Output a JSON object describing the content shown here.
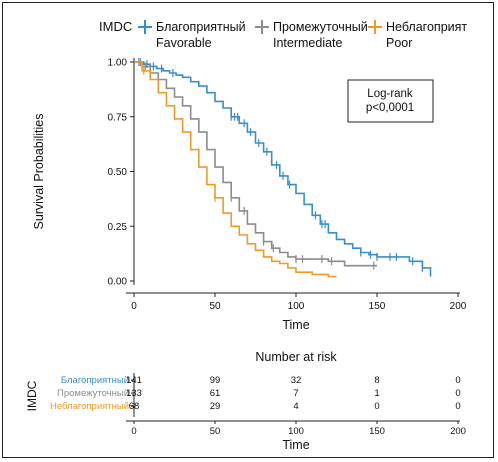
{
  "chart_data": [
    {
      "type": "line",
      "subtype": "kaplan-meier",
      "xlabel": "Time",
      "ylabel": "Survival Probabilities",
      "xlim": [
        0,
        200
      ],
      "ylim": [
        0,
        1
      ],
      "xticks": [
        0,
        50,
        100,
        150,
        200
      ],
      "yticks": [
        0.0,
        0.25,
        0.5,
        0.75,
        1.0
      ],
      "ytick_labels": [
        "0.00",
        "0.25",
        "0.50",
        "0.75",
        "1.00"
      ],
      "grid": false,
      "legend": {
        "title": "IMDC",
        "placement": "top",
        "entries": [
          {
            "line1": "Благоприятный",
            "line2": "Favorable"
          },
          {
            "line1": "Промежуточный",
            "line2": "Intermediate"
          },
          {
            "line1": "Неблагоприят",
            "line2": "Poor"
          }
        ]
      },
      "annotation": {
        "line1": "Log-rank",
        "line2": "p<0,0001"
      },
      "series": [
        {
          "color": "#3a8ec8",
          "points": [
            [
              0,
              1.0
            ],
            [
              6,
              0.99
            ],
            [
              10,
              0.98
            ],
            [
              14,
              0.97
            ],
            [
              18,
              0.96
            ],
            [
              22,
              0.95
            ],
            [
              26,
              0.94
            ],
            [
              30,
              0.93
            ],
            [
              35,
              0.91
            ],
            [
              40,
              0.89
            ],
            [
              45,
              0.86
            ],
            [
              50,
              0.82
            ],
            [
              55,
              0.79
            ],
            [
              60,
              0.75
            ],
            [
              65,
              0.72
            ],
            [
              70,
              0.68
            ],
            [
              75,
              0.63
            ],
            [
              80,
              0.59
            ],
            [
              85,
              0.53
            ],
            [
              90,
              0.48
            ],
            [
              95,
              0.44
            ],
            [
              100,
              0.4
            ],
            [
              105,
              0.35
            ],
            [
              110,
              0.3
            ],
            [
              115,
              0.26
            ],
            [
              120,
              0.22
            ],
            [
              125,
              0.19
            ],
            [
              130,
              0.17
            ],
            [
              135,
              0.15
            ],
            [
              140,
              0.13
            ],
            [
              145,
              0.12
            ],
            [
              150,
              0.11
            ],
            [
              160,
              0.11
            ],
            [
              170,
              0.09
            ],
            [
              178,
              0.06
            ],
            [
              183,
              0.02
            ]
          ],
          "censor_times": [
            3,
            8,
            12,
            17,
            24,
            60,
            62,
            64,
            68,
            72,
            77,
            82,
            88,
            92,
            96,
            112,
            116,
            118,
            140,
            146,
            150,
            158,
            162,
            172,
            178
          ]
        },
        {
          "color": "#8c8c8c",
          "points": [
            [
              0,
              1.0
            ],
            [
              5,
              0.98
            ],
            [
              10,
              0.95
            ],
            [
              15,
              0.92
            ],
            [
              20,
              0.88
            ],
            [
              25,
              0.84
            ],
            [
              30,
              0.8
            ],
            [
              35,
              0.74
            ],
            [
              40,
              0.68
            ],
            [
              45,
              0.6
            ],
            [
              50,
              0.52
            ],
            [
              55,
              0.45
            ],
            [
              60,
              0.38
            ],
            [
              65,
              0.32
            ],
            [
              70,
              0.26
            ],
            [
              75,
              0.22
            ],
            [
              80,
              0.18
            ],
            [
              85,
              0.15
            ],
            [
              90,
              0.13
            ],
            [
              95,
              0.11
            ],
            [
              100,
              0.1
            ],
            [
              110,
              0.1
            ],
            [
              120,
              0.09
            ],
            [
              130,
              0.07
            ],
            [
              150,
              0.07
            ]
          ],
          "censor_times": [
            4,
            7,
            60,
            68,
            80,
            86,
            100,
            104,
            116,
            122,
            148
          ]
        },
        {
          "color": "#f09a28",
          "points": [
            [
              0,
              1.0
            ],
            [
              5,
              0.96
            ],
            [
              10,
              0.92
            ],
            [
              15,
              0.86
            ],
            [
              20,
              0.8
            ],
            [
              25,
              0.74
            ],
            [
              30,
              0.68
            ],
            [
              35,
              0.6
            ],
            [
              40,
              0.52
            ],
            [
              45,
              0.44
            ],
            [
              50,
              0.38
            ],
            [
              55,
              0.31
            ],
            [
              60,
              0.25
            ],
            [
              65,
              0.21
            ],
            [
              70,
              0.17
            ],
            [
              75,
              0.14
            ],
            [
              80,
              0.11
            ],
            [
              85,
              0.09
            ],
            [
              90,
              0.08
            ],
            [
              95,
              0.06
            ],
            [
              100,
              0.04
            ],
            [
              110,
              0.03
            ],
            [
              120,
              0.02
            ],
            [
              125,
              0.02
            ]
          ],
          "censor_times": [
            6,
            50
          ]
        }
      ]
    },
    {
      "type": "table",
      "title": "Number at risk",
      "row_group_label": "IMDC",
      "xlabel": "Time",
      "xticks": [
        0,
        50,
        100,
        150,
        200
      ],
      "rows": [
        {
          "label": "Благоприятный",
          "color": "#3a8ec8",
          "values": [
            "141",
            "99",
            "32",
            "8",
            "0"
          ]
        },
        {
          "label": "Промежуточный",
          "color": "#8c8c8c",
          "values": [
            "133",
            "61",
            "7",
            "1",
            "0"
          ]
        },
        {
          "label": "Неблагоприятный",
          "color": "#f09a28",
          "values": [
            "68",
            "29",
            "4",
            "0",
            "0"
          ]
        }
      ]
    }
  ]
}
